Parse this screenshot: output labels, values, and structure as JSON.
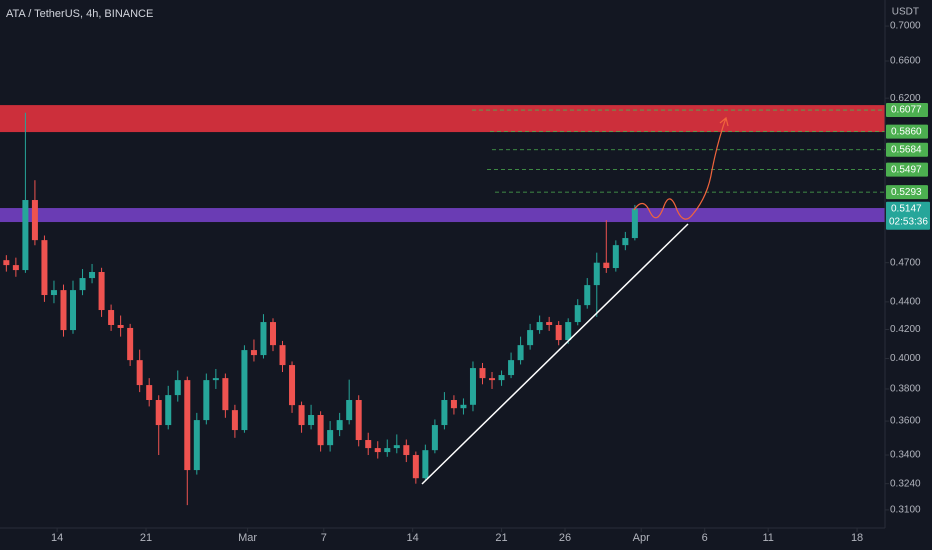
{
  "chart_data": {
    "type": "candlestick",
    "title": "ATA / TetherUS, 4h, BINANCE",
    "currency": "USDT",
    "x": [
      10,
      10.75,
      11.5,
      12.25,
      13,
      13.75,
      14.5,
      15.25,
      16,
      16.75,
      17.5,
      18.25,
      19,
      19.75,
      20.5,
      21.25,
      22,
      22.75,
      23.5,
      24.25,
      25,
      25.75,
      26.5,
      27.25,
      28,
      28.75,
      29.5,
      30.25,
      31,
      31.75,
      32.5,
      33.25,
      34,
      34.75,
      35.5,
      36.25,
      37,
      37.75,
      38.5,
      39.25,
      40,
      40.75,
      41.5,
      42.25,
      43,
      43.75,
      44.5,
      45.25,
      46,
      46.75,
      47.5,
      48.25,
      49,
      49.75,
      50.5,
      51.25,
      52,
      52.75,
      53.5,
      54.25,
      55,
      55.75,
      56.5,
      57.25,
      58,
      58.75,
      59.5
    ],
    "open": [
      0.472,
      0.4681,
      0.4642,
      0.5223,
      0.4882,
      0.4451,
      0.4488,
      0.4196,
      0.4488,
      0.458,
      0.4627,
      0.434,
      0.4232,
      0.4211,
      0.3989,
      0.3825,
      0.373,
      0.3576,
      0.3761,
      0.3857,
      0.3315,
      0.3606,
      0.3857,
      0.387,
      0.3667,
      0.3546,
      0.4057,
      0.4023,
      0.4253,
      0.4091,
      0.3956,
      0.3698,
      0.3576,
      0.3637,
      0.3457,
      0.3546,
      0.3606,
      0.373,
      0.3487,
      0.344,
      0.3417,
      0.344,
      0.3457,
      0.34,
      0.327,
      0.3428,
      0.3576,
      0.373,
      0.3679,
      0.37,
      0.3936,
      0.387,
      0.3857,
      0.389,
      0.3989,
      0.4091,
      0.4196,
      0.4253,
      0.4232,
      0.4126,
      0.4253,
      0.4376,
      0.4526,
      0.47,
      0.4658,
      0.4841,
      0.4899
    ],
    "high": [
      0.476,
      0.474,
      0.605,
      0.54,
      0.492,
      0.456,
      0.453,
      0.456,
      0.465,
      0.469,
      0.466,
      0.438,
      0.43,
      0.424,
      0.406,
      0.387,
      0.376,
      0.382,
      0.392,
      0.388,
      0.365,
      0.39,
      0.393,
      0.39,
      0.37,
      0.409,
      0.413,
      0.431,
      0.428,
      0.412,
      0.398,
      0.372,
      0.37,
      0.366,
      0.36,
      0.365,
      0.386,
      0.376,
      0.353,
      0.348,
      0.349,
      0.352,
      0.349,
      0.342,
      0.346,
      0.361,
      0.378,
      0.376,
      0.374,
      0.398,
      0.397,
      0.391,
      0.392,
      0.404,
      0.415,
      0.424,
      0.43,
      0.429,
      0.426,
      0.428,
      0.442,
      0.458,
      0.478,
      0.5049,
      0.488,
      0.495,
      0.518
    ],
    "low": [
      0.463,
      0.459,
      0.462,
      0.484,
      0.44,
      0.439,
      0.415,
      0.417,
      0.445,
      0.454,
      0.429,
      0.419,
      0.415,
      0.395,
      0.378,
      0.369,
      0.34,
      0.355,
      0.372,
      0.3125,
      0.329,
      0.358,
      0.38,
      0.362,
      0.35,
      0.353,
      0.398,
      0.4,
      0.405,
      0.391,
      0.365,
      0.353,
      0.355,
      0.342,
      0.342,
      0.351,
      0.358,
      0.345,
      0.34,
      0.338,
      0.339,
      0.341,
      0.336,
      0.324,
      0.3255,
      0.341,
      0.355,
      0.364,
      0.364,
      0.366,
      0.383,
      0.38,
      0.382,
      0.387,
      0.396,
      0.406,
      0.417,
      0.419,
      0.409,
      0.41,
      0.423,
      0.435,
      0.429,
      0.462,
      0.463,
      0.48,
      0.488
    ],
    "close": [
      0.4681,
      0.4642,
      0.5223,
      0.4882,
      0.4451,
      0.4488,
      0.4196,
      0.4488,
      0.458,
      0.4627,
      0.434,
      0.4232,
      0.4211,
      0.3989,
      0.3825,
      0.373,
      0.3576,
      0.3761,
      0.3857,
      0.3315,
      0.3606,
      0.3857,
      0.387,
      0.3667,
      0.3546,
      0.4057,
      0.4023,
      0.4253,
      0.4091,
      0.3956,
      0.3698,
      0.3576,
      0.3637,
      0.3457,
      0.3546,
      0.3606,
      0.373,
      0.3487,
      0.344,
      0.3417,
      0.344,
      0.3457,
      0.34,
      0.327,
      0.3428,
      0.3576,
      0.373,
      0.3679,
      0.37,
      0.3936,
      0.387,
      0.3857,
      0.389,
      0.3989,
      0.4091,
      0.4196,
      0.4253,
      0.4232,
      0.4126,
      0.4253,
      0.4376,
      0.4526,
      0.47,
      0.4658,
      0.4841,
      0.4899,
      0.5147
    ],
    "up_color": "#26a69a",
    "down_color": "#ef5350",
    "xlim": [
      9.5,
      79.2
    ],
    "xticks": [
      {
        "value": 14,
        "label": "14"
      },
      {
        "value": 21,
        "label": "21"
      },
      {
        "value": 29,
        "label": "Mar"
      },
      {
        "value": 35,
        "label": "7"
      },
      {
        "value": 42,
        "label": "14"
      },
      {
        "value": 49,
        "label": "21"
      },
      {
        "value": 54,
        "label": "26"
      },
      {
        "value": 60,
        "label": "Apr"
      },
      {
        "value": 65,
        "label": "6"
      },
      {
        "value": 70,
        "label": "11"
      },
      {
        "value": 77,
        "label": "18"
      }
    ],
    "ylim": [
      0.3007,
      0.7314
    ],
    "log_y": true,
    "yticks": [
      {
        "value": 0.7,
        "label": "0.7000"
      },
      {
        "value": 0.66,
        "label": "0.6600"
      },
      {
        "value": 0.62,
        "label": "0.6200"
      },
      {
        "value": 0.47,
        "label": "0.4700"
      },
      {
        "value": 0.44,
        "label": "0.4400"
      },
      {
        "value": 0.42,
        "label": "0.4200"
      },
      {
        "value": 0.4,
        "label": "0.4000"
      },
      {
        "value": 0.38,
        "label": "0.3800"
      },
      {
        "value": 0.36,
        "label": "0.3600"
      },
      {
        "value": 0.34,
        "label": "0.3400"
      },
      {
        "value": 0.324,
        "label": "0.3240"
      },
      {
        "value": 0.31,
        "label": "0.3100"
      }
    ],
    "levels": [
      0.6077,
      {
        "value": 0.586,
        "label": "0.5860"
      },
      0.5684,
      0.5497,
      0.5293
    ],
    "level_color": "#4caf50",
    "last_price": 0.5147,
    "countdown": "02:53:36",
    "zones": [
      {
        "from": 0.5856,
        "to": 0.6128,
        "color": "#cc2f3b"
      },
      {
        "from": 0.5033,
        "to": 0.5153,
        "color": "#6a3cb4"
      }
    ]
  }
}
